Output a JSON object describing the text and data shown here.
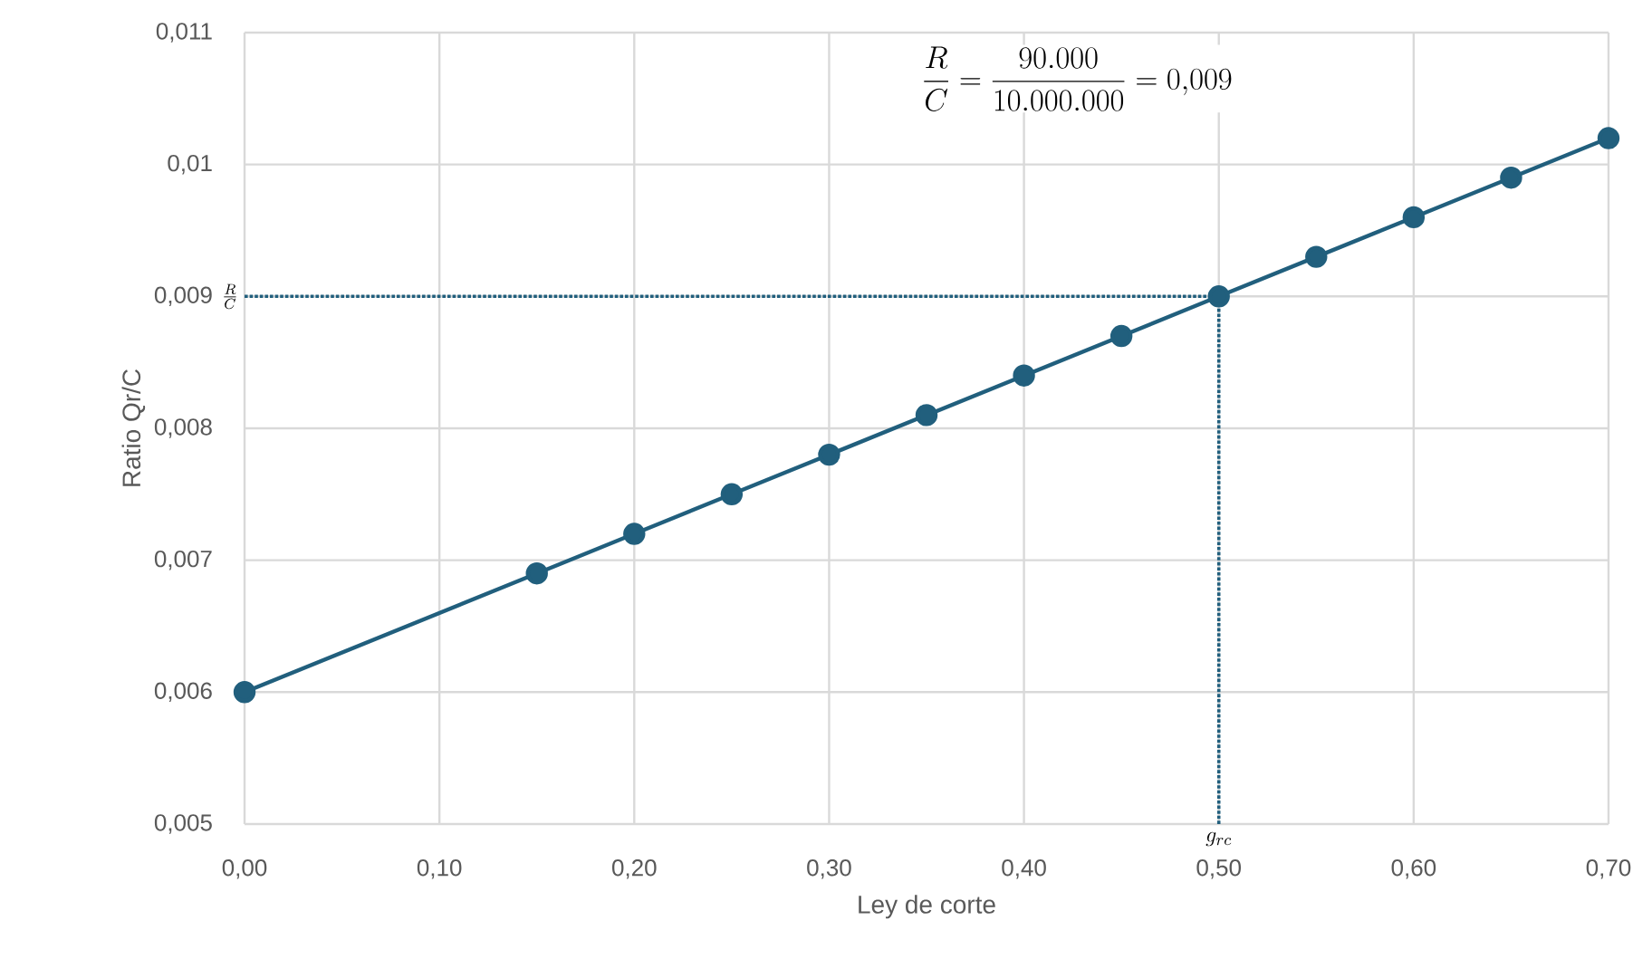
{
  "chart_data": {
    "type": "line",
    "xlabel": "Ley de corte",
    "ylabel": "Ratio  Qr/C",
    "x": [
      0,
      0.15,
      0.2,
      0.25,
      0.3,
      0.35,
      0.4,
      0.45,
      0.5,
      0.55,
      0.6,
      0.65,
      0.7
    ],
    "series": [
      {
        "color": "#215f7d",
        "values": [
          0.006,
          0.0069,
          0.0072,
          0.0075,
          0.0078,
          0.0081,
          0.0084,
          0.0087,
          0.009,
          0.0093,
          0.0096,
          0.0099,
          0.0102
        ]
      }
    ],
    "xlim": [
      0,
      0.7
    ],
    "xticks": [
      {
        "value": 0,
        "label": "0,00"
      },
      {
        "value": 0.1,
        "label": "0,10"
      },
      {
        "value": 0.2,
        "label": "0,20"
      },
      {
        "value": 0.3,
        "label": "0,30"
      },
      {
        "value": 0.4,
        "label": "0,40"
      },
      {
        "value": 0.5,
        "label": "0,50"
      },
      {
        "value": 0.6,
        "label": "0,60"
      },
      {
        "value": 0.7,
        "label": "0,70"
      }
    ],
    "ylim": [
      0.005,
      0.011
    ],
    "yticks": [
      {
        "value": 0.005,
        "label": "0,005"
      },
      {
        "value": 0.006,
        "label": "0,006"
      },
      {
        "value": 0.007,
        "label": "0,007"
      },
      {
        "value": 0.008,
        "label": "0,008"
      },
      {
        "value": 0.009,
        "label": "0,009"
      },
      {
        "value": 0.01,
        "label": "0,01"
      },
      {
        "value": 0.011,
        "label": "0,011"
      }
    ],
    "ref_lines": [
      {
        "axis": "y",
        "value": 0.009,
        "label": "\\frac{R}{C}",
        "line_style": "dotted",
        "color": "#215f7d"
      },
      {
        "axis": "x",
        "value": 0.5,
        "label": "g_{rc}",
        "line_style": "dotted",
        "color": "#215f7d"
      }
    ],
    "annotations": [
      "\\frac{R}{C}=\\frac{90.000}{10.000.000}=0{,}009"
    ],
    "grid": true,
    "marker": "circle",
    "line_style": "solid"
  }
}
